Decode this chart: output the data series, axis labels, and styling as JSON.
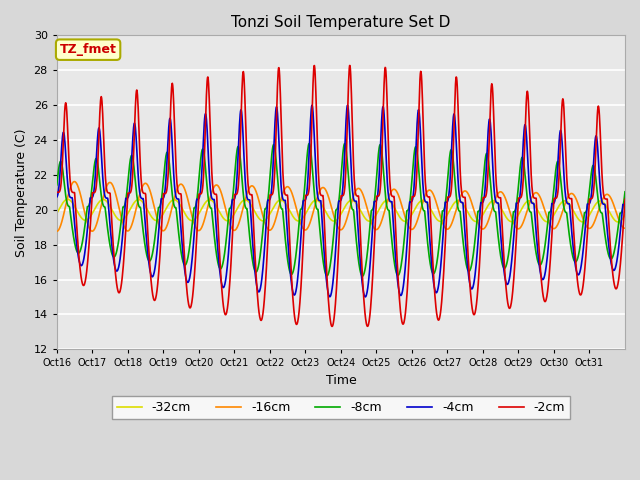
{
  "title": "Tonzi Soil Temperature Set D",
  "xlabel": "Time",
  "ylabel": "Soil Temperature (C)",
  "ylim": [
    12,
    30
  ],
  "annotation_text": "TZ_fmet",
  "annotation_color": "#cc0000",
  "annotation_bg": "#ffffcc",
  "annotation_border": "#aaaa00",
  "series_labels": [
    "-2cm",
    "-4cm",
    "-8cm",
    "-16cm",
    "-32cm"
  ],
  "series_colors": [
    "#dd0000",
    "#0000cc",
    "#00aa00",
    "#ff8800",
    "#dddd00"
  ],
  "line_width": 1.2,
  "plot_bg": "#e8e8e8",
  "plot_bg2": "#ffffff",
  "grid_color": "#ffffff",
  "xtick_labels": [
    "Oct 16",
    "Oct 17",
    "Oct 18",
    "Oct 19",
    "Oct 20",
    "Oct 21",
    "Oct 22",
    "Oct 23",
    "Oct 24",
    "Oct 25",
    "Oct 26",
    "Oct 27",
    "Oct 28",
    "Oct 29",
    "Oct 30",
    "Oct 31"
  ],
  "ytick_values": [
    12,
    14,
    16,
    18,
    20,
    22,
    24,
    26,
    28,
    30
  ],
  "n_points": 1600,
  "n_days": 16
}
